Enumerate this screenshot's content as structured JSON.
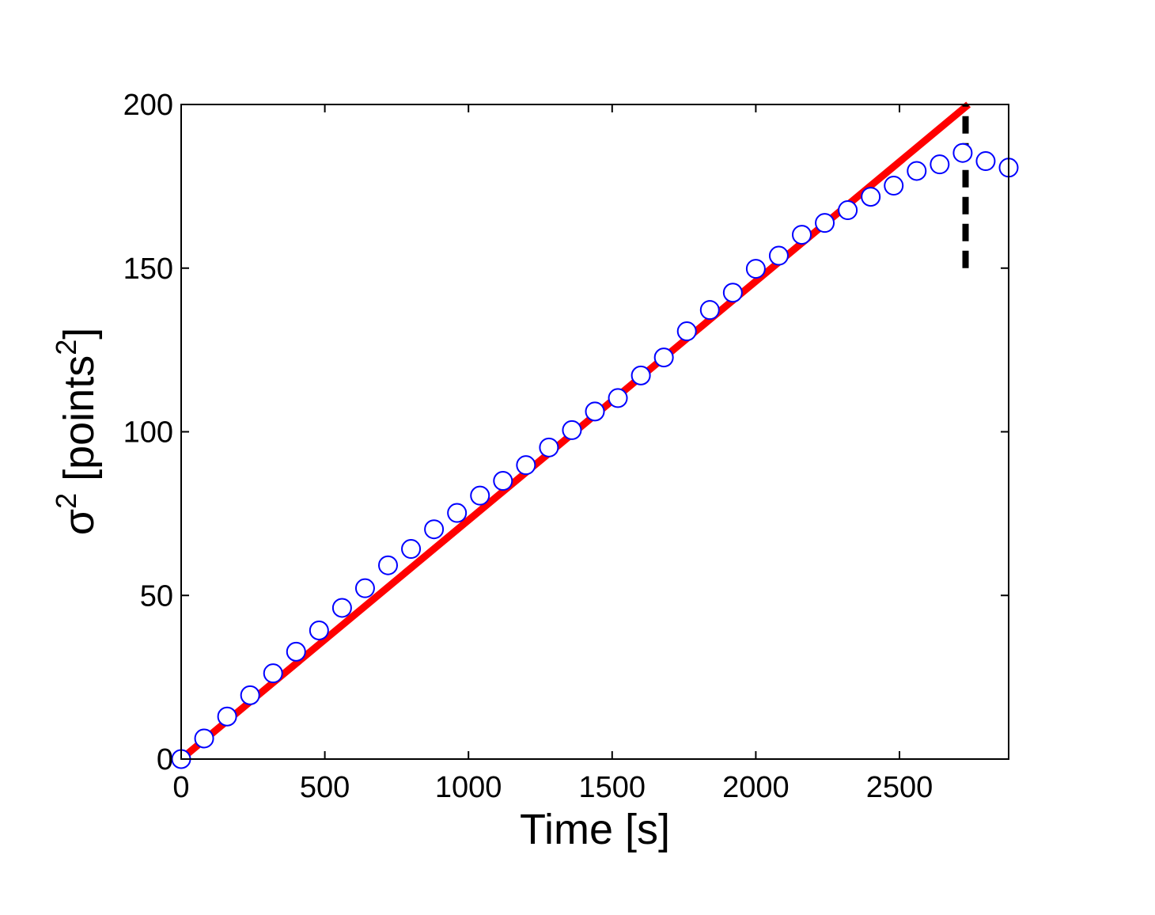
{
  "chart_data": {
    "type": "scatter",
    "title": "",
    "xlabel": "Time [s]",
    "ylabel": {
      "base": "σ",
      "sup": "2",
      "mid": " [points",
      "sup2": "2",
      "end": "]"
    },
    "xlim": [
      0,
      2880
    ],
    "ylim": [
      0,
      200
    ],
    "xticks": [
      0,
      500,
      1000,
      1500,
      2000,
      2500
    ],
    "yticks": [
      0,
      50,
      100,
      150,
      200
    ],
    "grid": false,
    "legend": "none",
    "series": [
      {
        "kind": "markers",
        "marker": "open-circle",
        "color": "#0000ff",
        "x": [
          0,
          80,
          160,
          240,
          320,
          400,
          480,
          560,
          640,
          720,
          800,
          880,
          960,
          1040,
          1120,
          1200,
          1280,
          1360,
          1440,
          1520,
          1600,
          1680,
          1760,
          1840,
          1920,
          2000,
          2080,
          2160,
          2240,
          2320,
          2400,
          2480,
          2560,
          2640,
          2720,
          2800,
          2880
        ],
        "y": [
          0,
          6.3,
          13,
          19.5,
          26.2,
          32.8,
          39.3,
          46.2,
          52.2,
          59.2,
          64.2,
          70.2,
          75.2,
          80.5,
          85,
          89.8,
          95.2,
          100.5,
          106.2,
          110.3,
          117.2,
          122.7,
          130.7,
          137.2,
          142.5,
          149.8,
          153.8,
          160.2,
          163.8,
          167.7,
          171.8,
          175.2,
          179.7,
          181.7,
          185.2,
          182.7,
          180.7
        ]
      },
      {
        "kind": "line",
        "style": "solid",
        "color": "#ff0000",
        "x": [
          0,
          2740
        ],
        "y": [
          0,
          200
        ]
      },
      {
        "kind": "line",
        "style": "dashed",
        "color": "#000000",
        "x": [
          2730,
          2730
        ],
        "y": [
          150,
          200
        ]
      }
    ]
  }
}
